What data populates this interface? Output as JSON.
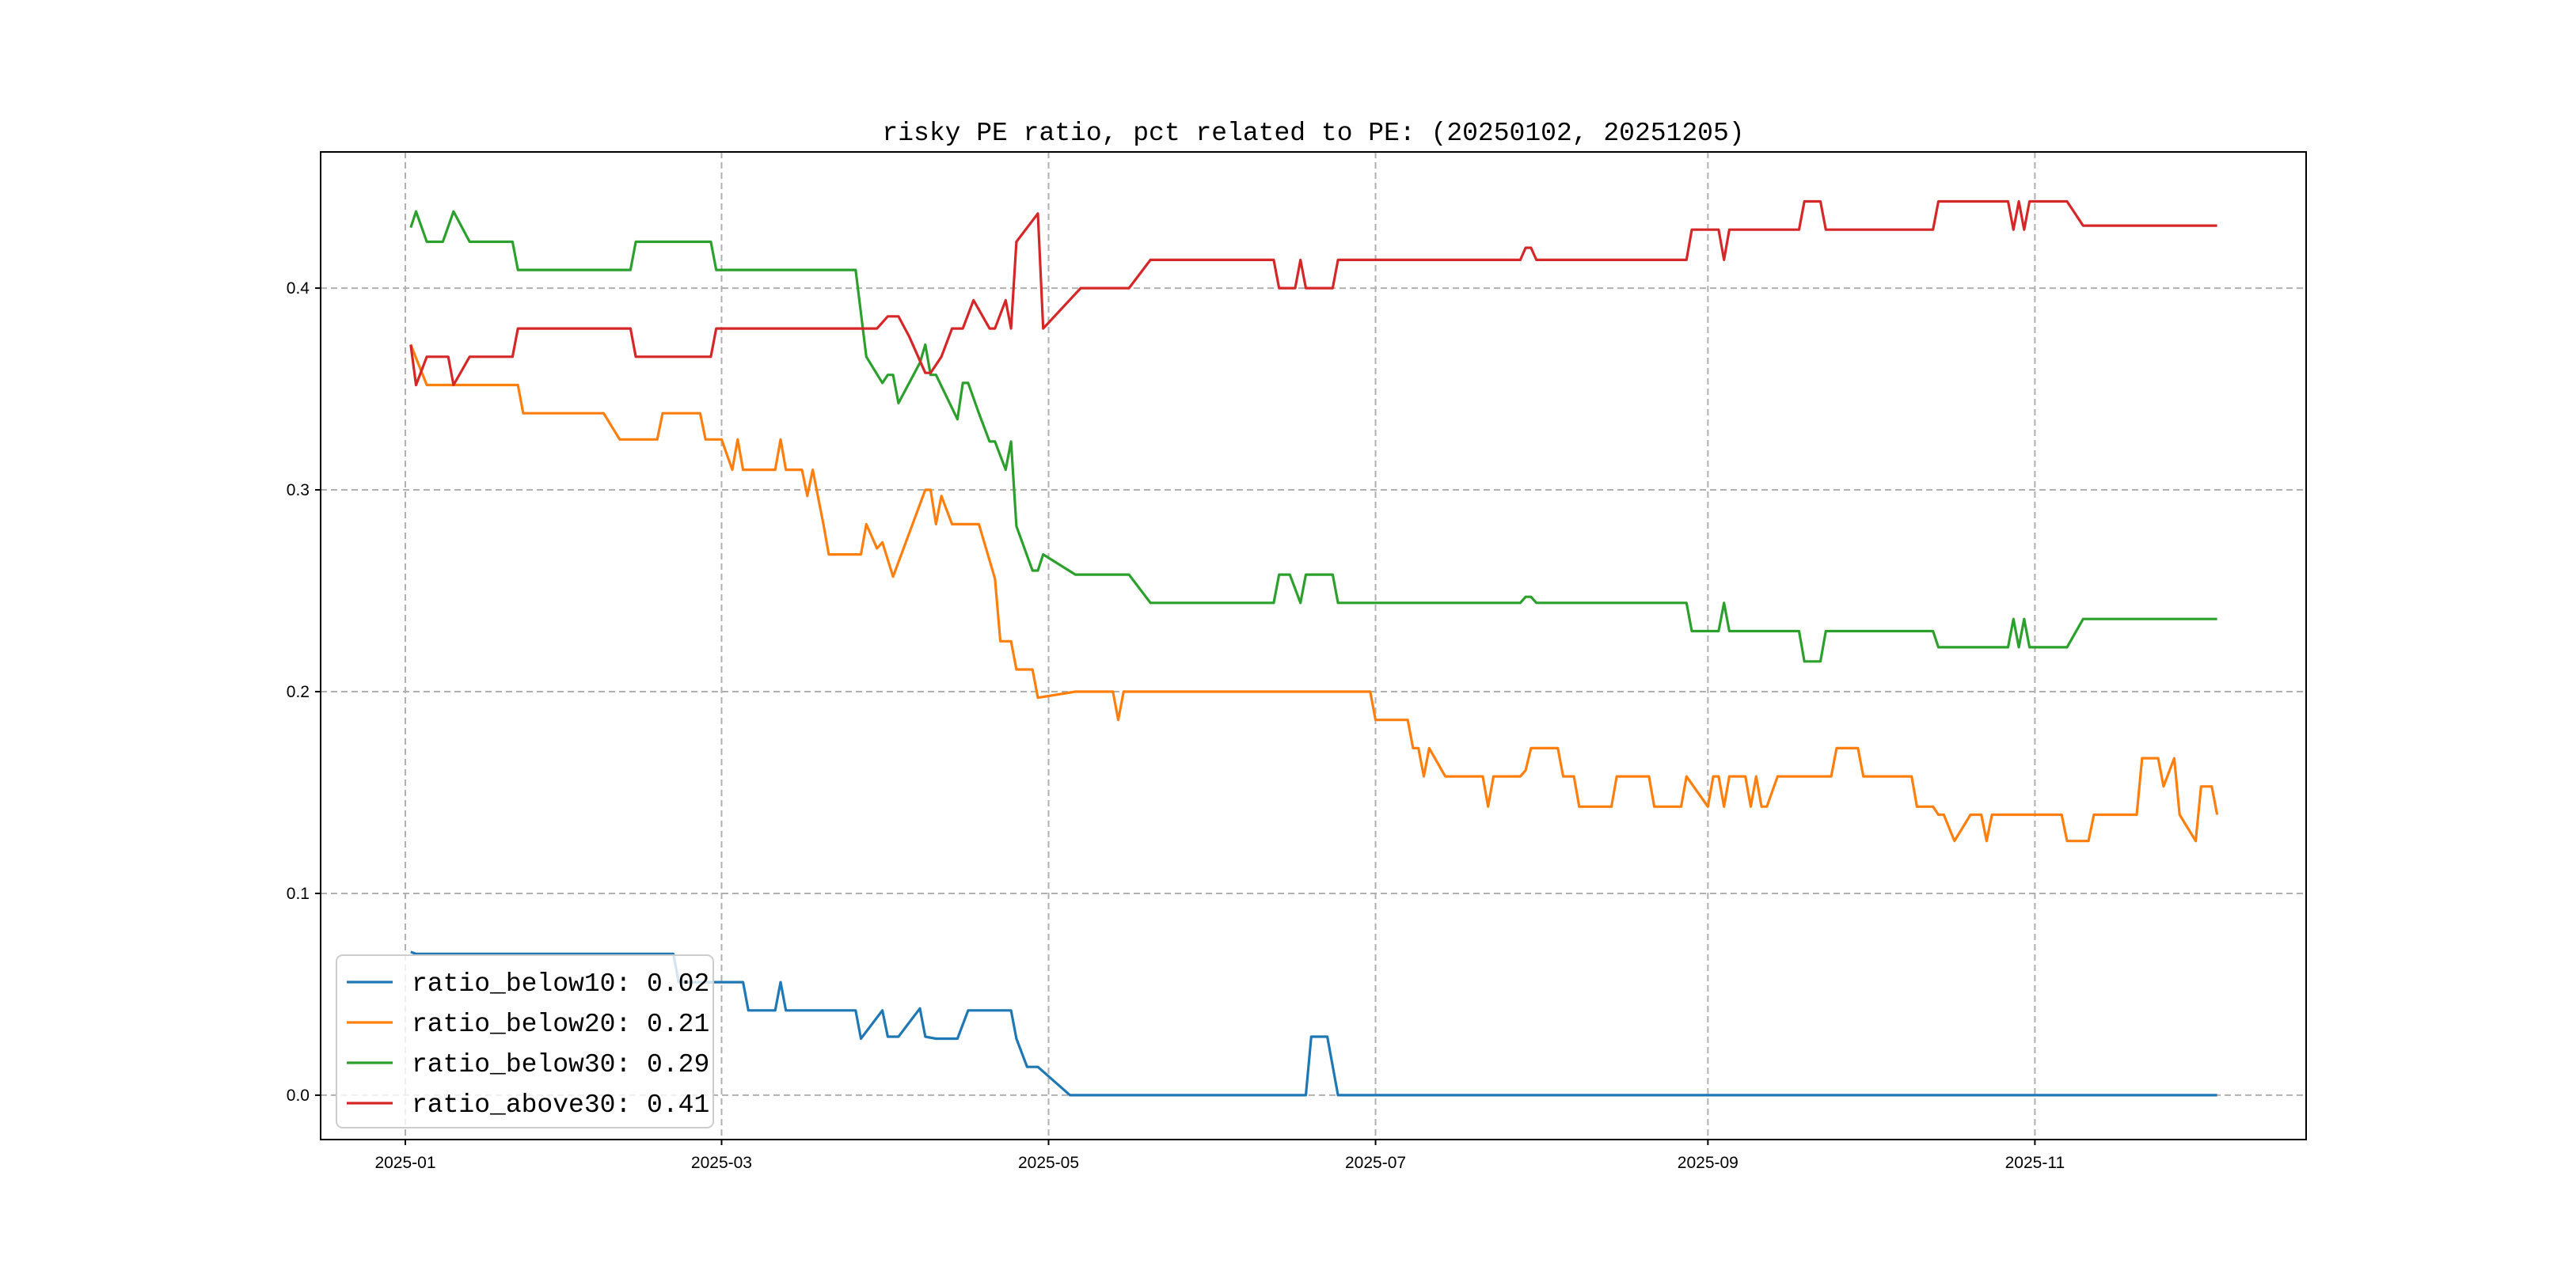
{
  "chart_data": {
    "type": "line",
    "title": "risky PE ratio, pct related to PE: (20250102, 20251205)",
    "xlabel": "",
    "ylabel": "",
    "x_unit": "days since 2025-01-01",
    "xlim": [
      -15.8,
      354.6
    ],
    "ylim": [
      -0.022,
      0.4675
    ],
    "grid": true,
    "legend_position": "lower-left",
    "x_ticks": [
      {
        "value": 0,
        "label": "2025-01"
      },
      {
        "value": 59,
        "label": "2025-03"
      },
      {
        "value": 120,
        "label": "2025-05"
      },
      {
        "value": 181,
        "label": "2025-07"
      },
      {
        "value": 243,
        "label": "2025-09"
      },
      {
        "value": 304,
        "label": "2025-11"
      }
    ],
    "y_ticks": [
      {
        "value": 0.0,
        "label": "0.0"
      },
      {
        "value": 0.1,
        "label": "0.1"
      },
      {
        "value": 0.2,
        "label": "0.2"
      },
      {
        "value": 0.3,
        "label": "0.3"
      },
      {
        "value": 0.4,
        "label": "0.4"
      }
    ],
    "series": [
      {
        "name": "ratio_below10",
        "legend_label": "ratio_below10: 0.02",
        "color": "#1f77b4",
        "points": [
          [
            1,
            0.071
          ],
          [
            2,
            0.07
          ],
          [
            50,
            0.07
          ],
          [
            51,
            0.056
          ],
          [
            63,
            0.056
          ],
          [
            64,
            0.042
          ],
          [
            69,
            0.042
          ],
          [
            70,
            0.056
          ],
          [
            71,
            0.042
          ],
          [
            84,
            0.042
          ],
          [
            85,
            0.028
          ],
          [
            89,
            0.042
          ],
          [
            90,
            0.029
          ],
          [
            92,
            0.029
          ],
          [
            96,
            0.043
          ],
          [
            97,
            0.029
          ],
          [
            99,
            0.028
          ],
          [
            103,
            0.028
          ],
          [
            105,
            0.042
          ],
          [
            113,
            0.042
          ],
          [
            114,
            0.028
          ],
          [
            116,
            0.014
          ],
          [
            118,
            0.014
          ],
          [
            124,
            0
          ],
          [
            168,
            0
          ],
          [
            169,
            0.029
          ],
          [
            172,
            0.029
          ],
          [
            174,
            0
          ],
          [
            338,
            0
          ]
        ]
      },
      {
        "name": "ratio_below20",
        "legend_label": "ratio_below20: 0.21",
        "color": "#ff7f0e",
        "points": [
          [
            1,
            0.372
          ],
          [
            4,
            0.352
          ],
          [
            21,
            0.352
          ],
          [
            22,
            0.338
          ],
          [
            37,
            0.338
          ],
          [
            40,
            0.325
          ],
          [
            47,
            0.325
          ],
          [
            48,
            0.338
          ],
          [
            55,
            0.338
          ],
          [
            56,
            0.325
          ],
          [
            59,
            0.325
          ],
          [
            61,
            0.31
          ],
          [
            62,
            0.325
          ],
          [
            63,
            0.31
          ],
          [
            69,
            0.31
          ],
          [
            70,
            0.325
          ],
          [
            71,
            0.31
          ],
          [
            74,
            0.31
          ],
          [
            75,
            0.297
          ],
          [
            76,
            0.31
          ],
          [
            78,
            0.283
          ],
          [
            79,
            0.268
          ],
          [
            85,
            0.268
          ],
          [
            86,
            0.283
          ],
          [
            88,
            0.271
          ],
          [
            89,
            0.274
          ],
          [
            91,
            0.257
          ],
          [
            97,
            0.3
          ],
          [
            98,
            0.3
          ],
          [
            99,
            0.283
          ],
          [
            100,
            0.297
          ],
          [
            102,
            0.283
          ],
          [
            107,
            0.283
          ],
          [
            110,
            0.256
          ],
          [
            111,
            0.225
          ],
          [
            113,
            0.225
          ],
          [
            114,
            0.211
          ],
          [
            117,
            0.211
          ],
          [
            118,
            0.197
          ],
          [
            125,
            0.2
          ],
          [
            132,
            0.2
          ],
          [
            133,
            0.186
          ],
          [
            134,
            0.2
          ],
          [
            180,
            0.2
          ],
          [
            181,
            0.186
          ],
          [
            187,
            0.186
          ],
          [
            188,
            0.172
          ],
          [
            189,
            0.172
          ],
          [
            190,
            0.158
          ],
          [
            191,
            0.172
          ],
          [
            194,
            0.158
          ],
          [
            201,
            0.158
          ],
          [
            202,
            0.143
          ],
          [
            203,
            0.158
          ],
          [
            208,
            0.158
          ],
          [
            209,
            0.161
          ],
          [
            210,
            0.172
          ],
          [
            215,
            0.172
          ],
          [
            216,
            0.158
          ],
          [
            218,
            0.158
          ],
          [
            219,
            0.143
          ],
          [
            225,
            0.143
          ],
          [
            226,
            0.158
          ],
          [
            232,
            0.158
          ],
          [
            233,
            0.143
          ],
          [
            238,
            0.143
          ],
          [
            239,
            0.158
          ],
          [
            243,
            0.143
          ],
          [
            244,
            0.158
          ],
          [
            245,
            0.158
          ],
          [
            246,
            0.143
          ],
          [
            247,
            0.158
          ],
          [
            250,
            0.158
          ],
          [
            251,
            0.143
          ],
          [
            252,
            0.158
          ],
          [
            253,
            0.143
          ],
          [
            254,
            0.143
          ],
          [
            256,
            0.158
          ],
          [
            266,
            0.158
          ],
          [
            267,
            0.172
          ],
          [
            271,
            0.172
          ],
          [
            272,
            0.158
          ],
          [
            281,
            0.158
          ],
          [
            282,
            0.143
          ],
          [
            285,
            0.143
          ],
          [
            286,
            0.139
          ],
          [
            287,
            0.139
          ],
          [
            289,
            0.126
          ],
          [
            292,
            0.139
          ],
          [
            294,
            0.139
          ],
          [
            295,
            0.126
          ],
          [
            296,
            0.139
          ],
          [
            309,
            0.139
          ],
          [
            310,
            0.126
          ],
          [
            314,
            0.126
          ],
          [
            315,
            0.139
          ],
          [
            323,
            0.139
          ],
          [
            324,
            0.167
          ],
          [
            327,
            0.167
          ],
          [
            328,
            0.153
          ],
          [
            330,
            0.167
          ],
          [
            331,
            0.139
          ],
          [
            334,
            0.126
          ],
          [
            335,
            0.153
          ],
          [
            337,
            0.153
          ],
          [
            338,
            0.139
          ]
        ]
      },
      {
        "name": "ratio_below30",
        "legend_label": "ratio_below30: 0.29",
        "color": "#2ca02c",
        "points": [
          [
            1,
            0.43
          ],
          [
            2,
            0.438
          ],
          [
            4,
            0.423
          ],
          [
            7,
            0.423
          ],
          [
            9,
            0.438
          ],
          [
            12,
            0.423
          ],
          [
            20,
            0.423
          ],
          [
            21,
            0.409
          ],
          [
            42,
            0.409
          ],
          [
            43,
            0.423
          ],
          [
            57,
            0.423
          ],
          [
            58,
            0.409
          ],
          [
            84,
            0.409
          ],
          [
            86,
            0.366
          ],
          [
            89,
            0.353
          ],
          [
            90,
            0.357
          ],
          [
            91,
            0.357
          ],
          [
            92,
            0.343
          ],
          [
            96,
            0.363
          ],
          [
            97,
            0.372
          ],
          [
            98,
            0.357
          ],
          [
            99,
            0.357
          ],
          [
            101,
            0.346
          ],
          [
            103,
            0.335
          ],
          [
            104,
            0.353
          ],
          [
            105,
            0.353
          ],
          [
            107,
            0.338
          ],
          [
            109,
            0.324
          ],
          [
            110,
            0.324
          ],
          [
            112,
            0.31
          ],
          [
            113,
            0.324
          ],
          [
            114,
            0.282
          ],
          [
            117,
            0.26
          ],
          [
            118,
            0.26
          ],
          [
            119,
            0.268
          ],
          [
            125,
            0.258
          ],
          [
            135,
            0.258
          ],
          [
            139,
            0.244
          ],
          [
            162,
            0.244
          ],
          [
            163,
            0.258
          ],
          [
            165,
            0.258
          ],
          [
            167,
            0.244
          ],
          [
            168,
            0.258
          ],
          [
            173,
            0.258
          ],
          [
            174,
            0.244
          ],
          [
            208,
            0.244
          ],
          [
            209,
            0.247
          ],
          [
            210,
            0.247
          ],
          [
            211,
            0.244
          ],
          [
            239,
            0.244
          ],
          [
            240,
            0.23
          ],
          [
            245,
            0.23
          ],
          [
            246,
            0.244
          ],
          [
            247,
            0.23
          ],
          [
            260,
            0.23
          ],
          [
            261,
            0.215
          ],
          [
            264,
            0.215
          ],
          [
            265,
            0.23
          ],
          [
            285,
            0.23
          ],
          [
            286,
            0.222
          ],
          [
            299,
            0.222
          ],
          [
            300,
            0.236
          ],
          [
            301,
            0.222
          ],
          [
            302,
            0.236
          ],
          [
            303,
            0.222
          ],
          [
            310,
            0.222
          ],
          [
            313,
            0.236
          ],
          [
            338,
            0.236
          ]
        ]
      },
      {
        "name": "ratio_above30",
        "legend_label": "ratio_above30: 0.41",
        "color": "#d62728",
        "points": [
          [
            1,
            0.372
          ],
          [
            2,
            0.352
          ],
          [
            4,
            0.366
          ],
          [
            8,
            0.366
          ],
          [
            9,
            0.352
          ],
          [
            12,
            0.366
          ],
          [
            20,
            0.366
          ],
          [
            21,
            0.38
          ],
          [
            42,
            0.38
          ],
          [
            43,
            0.366
          ],
          [
            57,
            0.366
          ],
          [
            58,
            0.38
          ],
          [
            88,
            0.38
          ],
          [
            90,
            0.386
          ],
          [
            92,
            0.386
          ],
          [
            94,
            0.376
          ],
          [
            97,
            0.358
          ],
          [
            98,
            0.358
          ],
          [
            100,
            0.366
          ],
          [
            102,
            0.38
          ],
          [
            104,
            0.38
          ],
          [
            106,
            0.394
          ],
          [
            109,
            0.38
          ],
          [
            110,
            0.38
          ],
          [
            112,
            0.394
          ],
          [
            113,
            0.38
          ],
          [
            114,
            0.423
          ],
          [
            118,
            0.437
          ],
          [
            119,
            0.38
          ],
          [
            126,
            0.4
          ],
          [
            135,
            0.4
          ],
          [
            139,
            0.414
          ],
          [
            162,
            0.414
          ],
          [
            163,
            0.4
          ],
          [
            166,
            0.4
          ],
          [
            167,
            0.414
          ],
          [
            168,
            0.4
          ],
          [
            173,
            0.4
          ],
          [
            174,
            0.414
          ],
          [
            208,
            0.414
          ],
          [
            209,
            0.42
          ],
          [
            210,
            0.42
          ],
          [
            211,
            0.414
          ],
          [
            239,
            0.414
          ],
          [
            240,
            0.429
          ],
          [
            245,
            0.429
          ],
          [
            246,
            0.414
          ],
          [
            247,
            0.429
          ],
          [
            260,
            0.429
          ],
          [
            261,
            0.443
          ],
          [
            264,
            0.443
          ],
          [
            265,
            0.429
          ],
          [
            285,
            0.429
          ],
          [
            286,
            0.443
          ],
          [
            299,
            0.443
          ],
          [
            300,
            0.429
          ],
          [
            301,
            0.443
          ],
          [
            302,
            0.429
          ],
          [
            303,
            0.443
          ],
          [
            310,
            0.443
          ],
          [
            313,
            0.431
          ],
          [
            338,
            0.431
          ]
        ]
      }
    ]
  }
}
